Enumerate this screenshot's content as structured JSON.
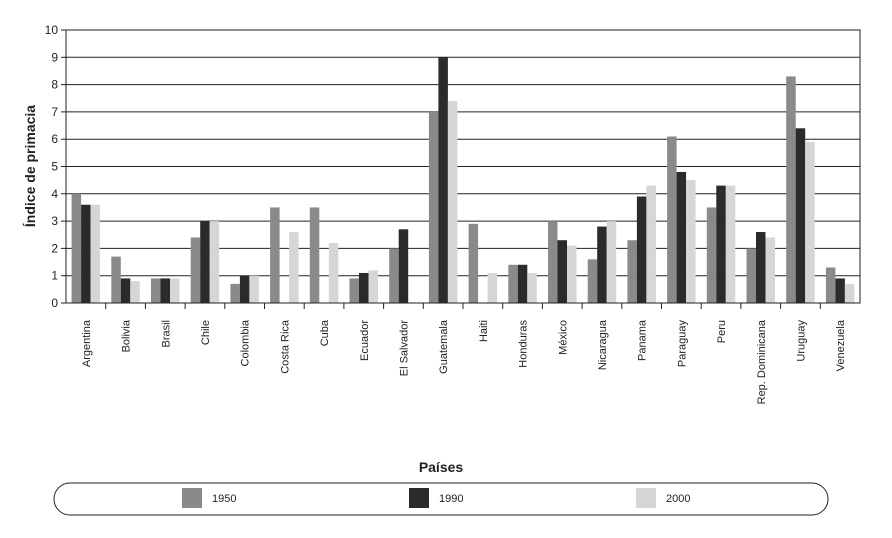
{
  "chart_data": {
    "type": "bar",
    "title": "",
    "xlabel": "Países",
    "ylabel": "Índice de primacia",
    "ylim": [
      0,
      10
    ],
    "yticks": [
      0,
      1,
      2,
      3,
      4,
      5,
      6,
      7,
      8,
      9,
      10
    ],
    "grid": true,
    "legend_position": "bottom",
    "categories": [
      "Argentina",
      "Bolivia",
      "Brasil",
      "Chile",
      "Colombia",
      "Costa Rica",
      "Cuba",
      "Ecuador",
      "El Salvador",
      "Guatemala",
      "Haiti",
      "Honduras",
      "México",
      "Nicaragua",
      "Panama",
      "Paraguay",
      "Peru",
      "Rep. Dominicana",
      "Uruguay",
      "Venezuela"
    ],
    "series": [
      {
        "name": "1950",
        "color": "#8a8a8a",
        "values": [
          4.0,
          1.7,
          0.9,
          2.4,
          0.7,
          3.5,
          3.5,
          0.9,
          2.0,
          7.0,
          2.9,
          1.4,
          3.0,
          1.6,
          2.3,
          6.1,
          3.5,
          2.0,
          8.3,
          1.3
        ]
      },
      {
        "name": "1990",
        "color": "#2b2b2b",
        "values": [
          3.6,
          0.9,
          0.9,
          3.0,
          1.0,
          null,
          null,
          1.1,
          2.7,
          9.0,
          null,
          1.4,
          2.3,
          2.8,
          3.9,
          4.8,
          4.3,
          2.6,
          6.4,
          0.9
        ]
      },
      {
        "name": "2000",
        "color": "#d6d6d6",
        "values": [
          3.6,
          0.8,
          0.9,
          3.0,
          1.0,
          2.6,
          2.2,
          1.2,
          null,
          7.4,
          1.1,
          1.1,
          2.1,
          3.0,
          4.3,
          4.5,
          4.3,
          2.4,
          5.9,
          0.7
        ]
      }
    ]
  }
}
